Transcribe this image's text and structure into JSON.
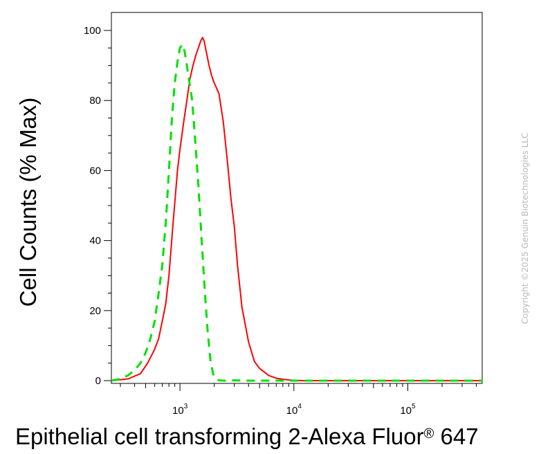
{
  "chart_data": {
    "type": "line",
    "xlabel": "Epithelial cell transforming 2-Alexa Fluor",
    "xlabel_mark": "®",
    "xlabel_suffix": " 647",
    "ylabel": "Cell Counts (% Max)",
    "x_scale": "log",
    "xlim": [
      250,
      450000
    ],
    "ylim": [
      0,
      100
    ],
    "x_ticks": [
      {
        "value": 1000,
        "base": "10",
        "exp": "3"
      },
      {
        "value": 10000,
        "base": "10",
        "exp": "4"
      },
      {
        "value": 100000,
        "base": "10",
        "exp": "5"
      }
    ],
    "y_ticks": [
      0,
      20,
      40,
      60,
      80,
      100
    ],
    "grid": false,
    "legend": "none",
    "series": [
      {
        "color": "#ff0000",
        "style": "solid",
        "x": [
          250,
          350,
          450,
          520,
          600,
          650,
          700,
          750,
          800,
          870,
          950,
          1000,
          1080,
          1150,
          1220,
          1300,
          1380,
          1450,
          1520,
          1580,
          1630,
          1700,
          1800,
          1900,
          2000,
          2200,
          2400,
          2600,
          2800,
          3000,
          3200,
          3500,
          4000,
          4500,
          5000,
          6000,
          7000,
          8000,
          9000,
          10000,
          12000,
          20000,
          100000,
          450000
        ],
        "y": [
          0,
          0.5,
          2,
          5,
          9,
          12,
          17,
          22,
          30,
          45,
          60,
          66,
          74,
          80,
          86,
          90,
          93,
          95,
          97,
          98,
          97,
          94,
          90,
          87,
          85,
          82,
          74,
          63,
          52,
          44,
          33,
          21,
          11,
          5.5,
          3.5,
          1.5,
          0.7,
          0.4,
          0.2,
          0.1,
          0,
          0,
          0,
          0
        ]
      },
      {
        "color": "#00e000",
        "style": "dashed",
        "x": [
          250,
          300,
          350,
          400,
          450,
          500,
          550,
          600,
          650,
          700,
          750,
          800,
          850,
          900,
          950,
          1000,
          1050,
          1100,
          1150,
          1200,
          1280,
          1350,
          1450,
          1550,
          1650,
          1750,
          1850,
          1950,
          2050,
          2200,
          2400,
          2700,
          3000,
          3600,
          4500,
          6000,
          10000,
          100000,
          450000
        ],
        "y": [
          0,
          0.5,
          1.5,
          3,
          5,
          8,
          12,
          17,
          25,
          33,
          45,
          60,
          75,
          85,
          91,
          95,
          96,
          94,
          90,
          86,
          80,
          70,
          56,
          40,
          26,
          14,
          6,
          2,
          0.5,
          0.1,
          0,
          0,
          0.1,
          0,
          0,
          0,
          0,
          0,
          0
        ]
      }
    ]
  },
  "watermark": "Copyright ©2025 Genuin Biotechnologies LLC"
}
